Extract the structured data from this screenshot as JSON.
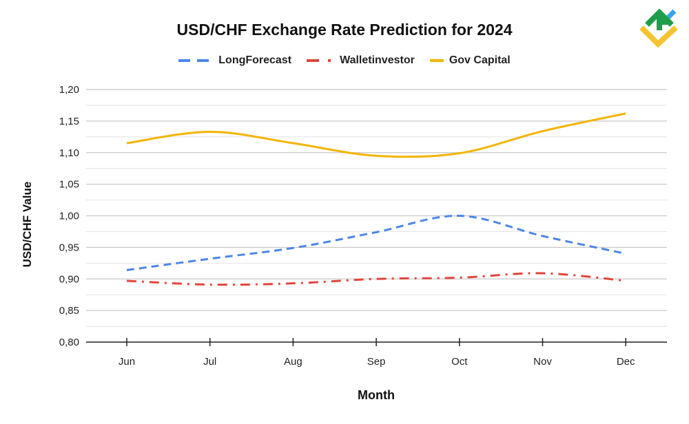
{
  "chart_data": {
    "type": "line",
    "title": "USD/CHF Exchange Rate Prediction for 2024",
    "xlabel": "Month",
    "ylabel": "USD/CHF Value",
    "categories": [
      "Jun",
      "Jul",
      "Aug",
      "Sep",
      "Oct",
      "Nov",
      "Dec"
    ],
    "ylim": [
      0.8,
      1.2
    ],
    "yticks": [
      "0,80",
      "0,85",
      "0,90",
      "0,95",
      "1,00",
      "1,05",
      "1,10",
      "1,15",
      "1,20"
    ],
    "grid": true,
    "legend": "top",
    "series": [
      {
        "name": "LongForecast",
        "color": "#4a86e8",
        "style": "dashed",
        "values": [
          0.914,
          0.932,
          0.949,
          0.974,
          1.0,
          0.968,
          0.94
        ]
      },
      {
        "name": "Walletinvestor",
        "color": "#e0453a",
        "style": "dash-dot",
        "values": [
          0.897,
          0.891,
          0.893,
          0.9,
          0.902,
          0.909,
          0.897
        ]
      },
      {
        "name": "Gov Capital",
        "color": "#f4b400",
        "style": "solid",
        "values": [
          1.115,
          1.133,
          1.115,
          1.095,
          1.099,
          1.134,
          1.162
        ]
      }
    ]
  },
  "logo": {
    "colors": [
      "#1e9e4a",
      "#3aa6e8",
      "#f4c430"
    ]
  }
}
